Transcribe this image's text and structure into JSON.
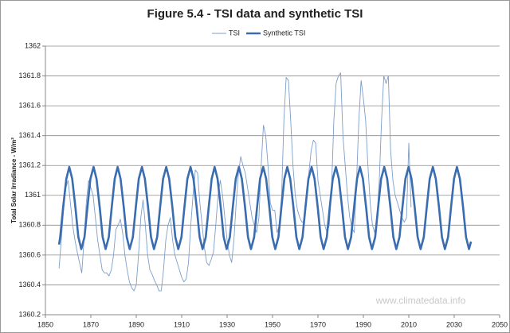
{
  "chart_data": {
    "type": "line",
    "title": "Figure 5.4 - TSI data and synthetic TSI",
    "y_label": "Total Solar Irradiance - W/m²",
    "watermark": "www.climatedata.info",
    "xlim": [
      1850,
      2050
    ],
    "xticks": [
      1850,
      1870,
      1890,
      1910,
      1930,
      1950,
      1970,
      1990,
      2010,
      2030,
      2050
    ],
    "ylim": [
      1360.2,
      1362
    ],
    "yticks": [
      1360.2,
      1360.4,
      1360.6,
      1360.8,
      1361,
      1361.2,
      1361.4,
      1361.6,
      1361.8,
      1362
    ],
    "grid": true,
    "legend": "top",
    "series": [
      {
        "name": "TSI",
        "color": "#7d9ecb",
        "x": [
          1856,
          1857,
          1858,
          1859,
          1860,
          1861,
          1862,
          1863,
          1864,
          1865,
          1866,
          1867,
          1868,
          1869,
          1870,
          1871,
          1872,
          1873,
          1874,
          1875,
          1876,
          1877,
          1878,
          1879,
          1880,
          1881,
          1882,
          1883,
          1884,
          1885,
          1886,
          1887,
          1888,
          1889,
          1890,
          1891,
          1892,
          1893,
          1894,
          1895,
          1896,
          1897,
          1898,
          1899,
          1900,
          1901,
          1902,
          1903,
          1904,
          1905,
          1906,
          1907,
          1908,
          1909,
          1910,
          1911,
          1912,
          1913,
          1914,
          1915,
          1916,
          1917,
          1918,
          1919,
          1920,
          1921,
          1922,
          1923,
          1924,
          1925,
          1926,
          1927,
          1928,
          1929,
          1930,
          1931,
          1932,
          1933,
          1934,
          1935,
          1936,
          1937,
          1938,
          1939,
          1940,
          1941,
          1942,
          1943,
          1944,
          1945,
          1946,
          1947,
          1948,
          1949,
          1950,
          1951,
          1952,
          1953,
          1954,
          1955,
          1956,
          1957,
          1958,
          1959,
          1960,
          1961,
          1962,
          1963,
          1964,
          1965,
          1966,
          1967,
          1968,
          1969,
          1970,
          1971,
          1972,
          1973,
          1974,
          1975,
          1976,
          1977,
          1978,
          1979,
          1980,
          1981,
          1982,
          1983,
          1984,
          1985,
          1986,
          1987,
          1988,
          1989,
          1990,
          1991,
          1992,
          1993,
          1994,
          1995,
          1996,
          1997,
          1998,
          1999,
          2000,
          2001,
          2002,
          2003,
          2004,
          2005,
          2006,
          2007,
          2008,
          2009,
          2010,
          2011
        ],
        "values": [
          1360.51,
          1360.7,
          1360.9,
          1361.05,
          1361.1,
          1360.95,
          1360.8,
          1360.7,
          1360.62,
          1360.55,
          1360.48,
          1360.7,
          1360.95,
          1361.1,
          1361.05,
          1361.0,
          1360.85,
          1360.7,
          1360.6,
          1360.5,
          1360.48,
          1360.48,
          1360.46,
          1360.5,
          1360.6,
          1360.77,
          1360.8,
          1360.84,
          1360.75,
          1360.6,
          1360.5,
          1360.42,
          1360.38,
          1360.36,
          1360.4,
          1360.6,
          1360.85,
          1360.97,
          1360.8,
          1360.6,
          1360.5,
          1360.47,
          1360.43,
          1360.4,
          1360.36,
          1360.36,
          1360.5,
          1360.7,
          1360.8,
          1360.85,
          1360.7,
          1360.6,
          1360.55,
          1360.5,
          1360.45,
          1360.42,
          1360.44,
          1360.55,
          1360.8,
          1361.0,
          1361.17,
          1361.15,
          1360.95,
          1360.8,
          1360.65,
          1360.55,
          1360.53,
          1360.57,
          1360.62,
          1360.8,
          1361.0,
          1361.1,
          1361.0,
          1360.85,
          1360.7,
          1360.6,
          1360.55,
          1360.7,
          1360.95,
          1361.15,
          1361.26,
          1361.2,
          1361.15,
          1361.05,
          1360.95,
          1360.85,
          1360.8,
          1360.75,
          1360.85,
          1361.2,
          1361.47,
          1361.4,
          1361.2,
          1360.95,
          1360.9,
          1360.9,
          1360.75,
          1360.8,
          1361.0,
          1361.5,
          1361.79,
          1361.77,
          1361.5,
          1361.2,
          1361.0,
          1360.9,
          1360.85,
          1360.82,
          1360.83,
          1360.95,
          1361.15,
          1361.3,
          1361.37,
          1361.35,
          1361.1,
          1361.0,
          1360.9,
          1360.8,
          1360.75,
          1360.8,
          1361.05,
          1361.5,
          1361.75,
          1361.8,
          1361.82,
          1361.4,
          1361.2,
          1361.0,
          1360.85,
          1360.78,
          1360.75,
          1361.1,
          1361.5,
          1361.77,
          1361.65,
          1361.5,
          1361.2,
          1360.95,
          1360.8,
          1360.75,
          1360.85,
          1361.1,
          1361.5,
          1361.8,
          1361.75,
          1361.8,
          1361.3,
          1361.1,
          1361.0,
          1360.95,
          1360.9,
          1360.85,
          1360.82,
          1360.85,
          1361.35,
          1360.92
        ]
      },
      {
        "name": "Synthetic TSI",
        "color": "#3a6cb0",
        "x": [
          1856,
          1856.5,
          1857.8,
          1859.2,
          1860.5,
          1861.8,
          1863.2,
          1864.5,
          1865.8,
          1867.2,
          1868.5,
          1869.8,
          1871.2,
          1872.5,
          1873.9,
          1875.2,
          1876.5,
          1877.9,
          1879.2,
          1880.5,
          1881.8,
          1883.1,
          1884.5,
          1885.8,
          1887.1,
          1888.5,
          1889.8,
          1891.1,
          1892.5,
          1893.8,
          1895.2,
          1896.5,
          1897.8,
          1899.2,
          1900.5,
          1901.8,
          1903.2,
          1904.5,
          1905.9,
          1907.2,
          1908.5,
          1909.9,
          1911.2,
          1912.5,
          1913.9,
          1915.2,
          1916.6,
          1917.9,
          1919.2,
          1920.6,
          1921.9,
          1923.2,
          1924.5,
          1925.8,
          1927.2,
          1928.5,
          1929.8,
          1931.2,
          1932.5,
          1933.8,
          1935.2,
          1936.5,
          1937.9,
          1939.2,
          1940.5,
          1941.9,
          1943.2,
          1944.5,
          1945.9,
          1947.2,
          1948.6,
          1949.9,
          1951.2,
          1952.6,
          1953.9,
          1955.2,
          1956.5,
          1957.8,
          1959.2,
          1960.5,
          1961.8,
          1963.2,
          1964.5,
          1965.8,
          1967.2,
          1968.5,
          1969.9,
          1971.2,
          1972.5,
          1973.9,
          1975.2,
          1976.5,
          1977.9,
          1979.2,
          1980.6,
          1981.9,
          1983.2,
          1984.6,
          1985.9,
          1987.2,
          1988.5,
          1989.8,
          1991.2,
          1992.5,
          1993.8,
          1995.2,
          1996.5,
          1997.8,
          1999.2,
          2000.5,
          2001.9,
          2003.2,
          2004.5,
          2005.9,
          2007.2,
          2008.5,
          2009.9,
          2011.2,
          2012.6,
          2013.9,
          2015.2,
          2016.6,
          2017.9,
          2019.2,
          2020.6,
          2021.9,
          2023.3,
          2024.6,
          2025.9,
          2027.3,
          2028.6,
          2029.9,
          2031.2,
          2032.5,
          2033.9,
          2035.2,
          2036.5,
          2037.4
        ],
        "values": [
          1360.67,
          1360.72,
          1360.92,
          1361.11,
          1361.19,
          1361.11,
          1360.92,
          1360.72,
          1360.64,
          1360.72,
          1360.92,
          1361.11,
          1361.19,
          1361.11,
          1360.92,
          1360.72,
          1360.64,
          1360.72,
          1360.92,
          1361.11,
          1361.19,
          1361.11,
          1360.92,
          1360.72,
          1360.64,
          1360.72,
          1360.92,
          1361.11,
          1361.19,
          1361.11,
          1360.92,
          1360.72,
          1360.64,
          1360.72,
          1360.92,
          1361.11,
          1361.19,
          1361.11,
          1360.92,
          1360.72,
          1360.64,
          1360.72,
          1360.92,
          1361.11,
          1361.19,
          1361.11,
          1360.92,
          1360.72,
          1360.64,
          1360.72,
          1360.92,
          1361.11,
          1361.19,
          1361.11,
          1360.92,
          1360.72,
          1360.64,
          1360.72,
          1360.92,
          1361.11,
          1361.19,
          1361.11,
          1360.92,
          1360.72,
          1360.64,
          1360.72,
          1360.92,
          1361.11,
          1361.19,
          1361.11,
          1360.92,
          1360.72,
          1360.64,
          1360.72,
          1360.92,
          1361.11,
          1361.19,
          1361.11,
          1360.92,
          1360.72,
          1360.64,
          1360.72,
          1360.92,
          1361.11,
          1361.19,
          1361.11,
          1360.92,
          1360.72,
          1360.64,
          1360.72,
          1360.92,
          1361.11,
          1361.19,
          1361.11,
          1360.92,
          1360.72,
          1360.64,
          1360.72,
          1360.92,
          1361.11,
          1361.19,
          1361.11,
          1360.92,
          1360.72,
          1360.64,
          1360.72,
          1360.92,
          1361.11,
          1361.19,
          1361.11,
          1360.92,
          1360.72,
          1360.64,
          1360.72,
          1360.92,
          1361.11,
          1361.19,
          1361.11,
          1360.92,
          1360.72,
          1360.64,
          1360.72,
          1360.92,
          1361.11,
          1361.19,
          1361.11,
          1360.92,
          1360.72,
          1360.64,
          1360.72,
          1360.92,
          1361.11,
          1361.19,
          1361.11,
          1360.92,
          1360.72,
          1360.64,
          1360.69
        ]
      }
    ]
  }
}
